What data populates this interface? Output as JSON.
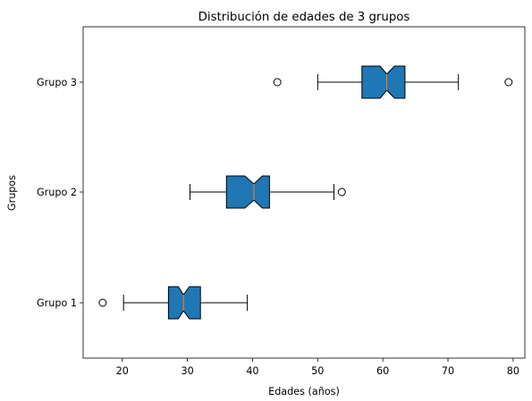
{
  "chart_data": {
    "type": "boxplot",
    "orientation": "horizontal",
    "notched": true,
    "title": "Distribución de edades de 3 grupos",
    "xlabel": "Edades (años)",
    "ylabel": "Grupos",
    "xlim": [
      14,
      81.8
    ],
    "xticks": [
      20,
      30,
      40,
      50,
      60,
      70,
      80
    ],
    "categories": [
      "Grupo 1",
      "Grupo 2",
      "Grupo 3"
    ],
    "box_color": "#1f77b4",
    "median_color": "#ff7f0e",
    "grid": false,
    "legend": "none",
    "groups": [
      {
        "name": "Grupo 1",
        "whisker_low": 20.2,
        "q1": 27.1,
        "notch_low": 28.6,
        "median": 29.4,
        "notch_high": 30.3,
        "q3": 32.0,
        "whisker_high": 39.2,
        "outliers": [
          17.0
        ]
      },
      {
        "name": "Grupo 2",
        "whisker_low": 30.4,
        "q1": 36.0,
        "notch_low": 38.8,
        "median": 40.2,
        "notch_high": 41.5,
        "q3": 42.6,
        "whisker_high": 52.5,
        "outliers": [
          53.7
        ]
      },
      {
        "name": "Grupo 3",
        "whisker_low": 50.0,
        "q1": 56.8,
        "notch_low": 59.6,
        "median": 60.6,
        "notch_high": 61.8,
        "q3": 63.4,
        "whisker_high": 71.6,
        "outliers": [
          43.8,
          79.3
        ]
      }
    ]
  }
}
